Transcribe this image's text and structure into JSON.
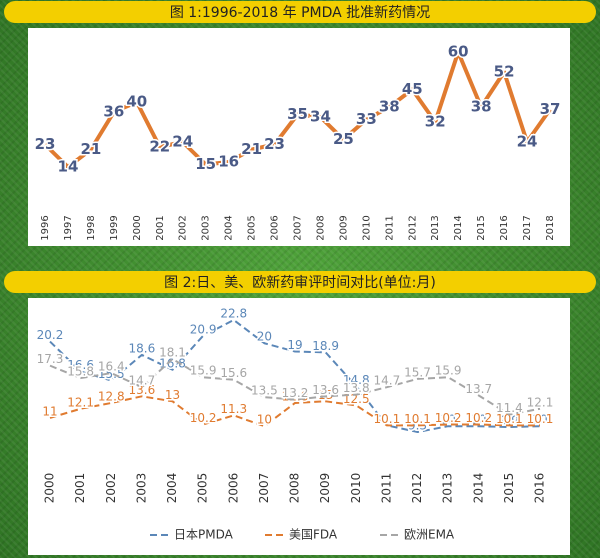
{
  "chart_data": [
    {
      "type": "line",
      "title": "图 1:1996-2018 年 PMDA 批准新药情况",
      "categories": [
        "1996",
        "1997",
        "1998",
        "1999",
        "2000",
        "2001",
        "2002",
        "2003",
        "2004",
        "2005",
        "2006",
        "2007",
        "2008",
        "2009",
        "2010",
        "2011",
        "2012",
        "2013",
        "2014",
        "2015",
        "2016",
        "2017",
        "2018"
      ],
      "series": [
        {
          "name": null,
          "color": "#e07b30",
          "values": [
            23,
            14,
            21,
            36,
            40,
            22,
            24,
            15,
            16,
            21,
            23,
            35,
            34,
            25,
            33,
            38,
            45,
            32,
            60,
            38,
            52,
            24,
            37
          ]
        }
      ]
    },
    {
      "type": "line",
      "title": "图 2:日、美、欧新药审评时间对比(单位:月)",
      "categories": [
        "2000",
        "2001",
        "2002",
        "2003",
        "2004",
        "2005",
        "2006",
        "2007",
        "2008",
        "2009",
        "2010",
        "2011",
        "2012",
        "2013",
        "2014",
        "2015",
        "2016"
      ],
      "series": [
        {
          "name": "日本PMDA",
          "color": "#5b87b8",
          "values": [
            20.2,
            16.6,
            15.5,
            18.6,
            16.8,
            20.9,
            22.8,
            20,
            19,
            18.9,
            14.8,
            10.1,
            9.3,
            10,
            10,
            9.9,
            10
          ]
        },
        {
          "name": "美国FDA",
          "color": "#e07b30",
          "values": [
            11,
            12.1,
            12.8,
            13.6,
            13,
            10.2,
            11.3,
            10,
            12.8,
            13,
            12.5,
            10.1,
            10.1,
            10.2,
            10.2,
            10.1,
            10.1
          ]
        },
        {
          "name": "欧洲EMA",
          "color": "#a6a6a6",
          "values": [
            17.3,
            15.8,
            16.4,
            14.7,
            18.1,
            15.9,
            15.6,
            13.5,
            13.2,
            13.6,
            13.8,
            14.7,
            15.7,
            15.9,
            13.7,
            11.4,
            12.1
          ]
        }
      ],
      "legend": "bottom",
      "dashed": true
    }
  ]
}
